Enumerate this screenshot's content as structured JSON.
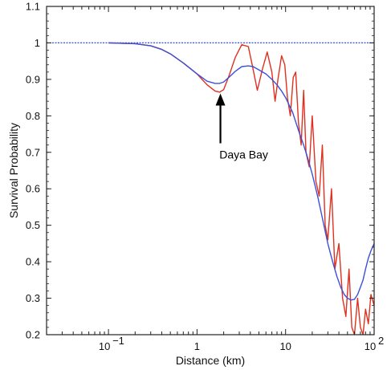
{
  "chart_data": {
    "type": "line",
    "title": "",
    "xlabel": "Distance (km)",
    "ylabel": "Survival Probability",
    "xscale": "log",
    "xlim": [
      0.02,
      100
    ],
    "ylim": [
      0.2,
      1.1
    ],
    "grid": false,
    "legend": "none",
    "x_ticks": [
      {
        "value": 0.1,
        "base": "10",
        "exp": "−1"
      },
      {
        "value": 1,
        "label": "1"
      },
      {
        "value": 10,
        "label": "10"
      },
      {
        "value": 100,
        "base": "10",
        "exp": "2"
      }
    ],
    "y_ticks": [
      {
        "value": 0.2,
        "label": "0.2"
      },
      {
        "value": 0.3,
        "label": "0.3"
      },
      {
        "value": 0.4,
        "label": "0.4"
      },
      {
        "value": 0.5,
        "label": "0.5"
      },
      {
        "value": 0.6,
        "label": "0.6"
      },
      {
        "value": 0.7,
        "label": "0.7"
      },
      {
        "value": 0.8,
        "label": "0.8"
      },
      {
        "value": 0.9,
        "label": "0.9"
      },
      {
        "value": 1,
        "label": "1"
      },
      {
        "value": 1.1,
        "label": "1.1"
      }
    ],
    "series": [
      {
        "color": "#e03020",
        "x": [
          0.1,
          0.2,
          0.3,
          0.4,
          0.5,
          0.7,
          1,
          1.3,
          1.6,
          1.8,
          2.0,
          2.3,
          2.7,
          3.2,
          3.8,
          4.2,
          4.8,
          5.5,
          6.2,
          7.0,
          7.6,
          8.2,
          9.0,
          9.8,
          10.5,
          11.3,
          12.2,
          13.0,
          14.0,
          15.0,
          16.0,
          17.0,
          18.5,
          20,
          22,
          24,
          26,
          28,
          30,
          33,
          36,
          40,
          44,
          48,
          52,
          56,
          60,
          65,
          70,
          75,
          80,
          86,
          92,
          100
        ],
        "y": [
          1.0,
          0.998,
          0.992,
          0.982,
          0.97,
          0.945,
          0.915,
          0.885,
          0.868,
          0.865,
          0.872,
          0.91,
          0.96,
          0.995,
          0.99,
          0.94,
          0.87,
          0.93,
          0.975,
          0.92,
          0.84,
          0.9,
          0.965,
          0.94,
          0.85,
          0.8,
          0.905,
          0.92,
          0.78,
          0.72,
          0.87,
          0.7,
          0.66,
          0.8,
          0.62,
          0.58,
          0.72,
          0.5,
          0.46,
          0.6,
          0.38,
          0.45,
          0.3,
          0.25,
          0.38,
          0.22,
          0.2,
          0.3,
          0.22,
          0.2,
          0.27,
          0.23,
          0.31,
          0.28
        ]
      },
      {
        "color": "#3a50d8",
        "x": [
          0.1,
          0.2,
          0.3,
          0.4,
          0.5,
          0.7,
          1,
          1.3,
          1.6,
          1.8,
          2.0,
          2.3,
          2.7,
          3.2,
          3.8,
          4.3,
          5.0,
          6.0,
          7.0,
          8.0,
          9.0,
          10,
          12,
          14,
          16,
          18,
          20,
          23,
          26,
          30,
          34,
          38,
          42,
          46,
          50,
          55,
          60,
          65,
          70,
          75,
          80,
          86,
          92,
          100
        ],
        "y": [
          1.0,
          0.998,
          0.992,
          0.982,
          0.97,
          0.945,
          0.915,
          0.895,
          0.889,
          0.889,
          0.893,
          0.906,
          0.922,
          0.935,
          0.937,
          0.935,
          0.926,
          0.915,
          0.9,
          0.885,
          0.868,
          0.85,
          0.81,
          0.76,
          0.72,
          0.68,
          0.64,
          0.58,
          0.52,
          0.45,
          0.4,
          0.36,
          0.33,
          0.31,
          0.3,
          0.295,
          0.297,
          0.31,
          0.33,
          0.35,
          0.38,
          0.41,
          0.43,
          0.45
        ]
      },
      {
        "color": "#3a50d8",
        "dashed": true,
        "x": [
          0.02,
          100
        ],
        "y": [
          1.0,
          1.0
        ]
      }
    ],
    "annotations": [
      {
        "text": "Daya Bay",
        "x": 1.8,
        "y": 0.87
      }
    ]
  }
}
